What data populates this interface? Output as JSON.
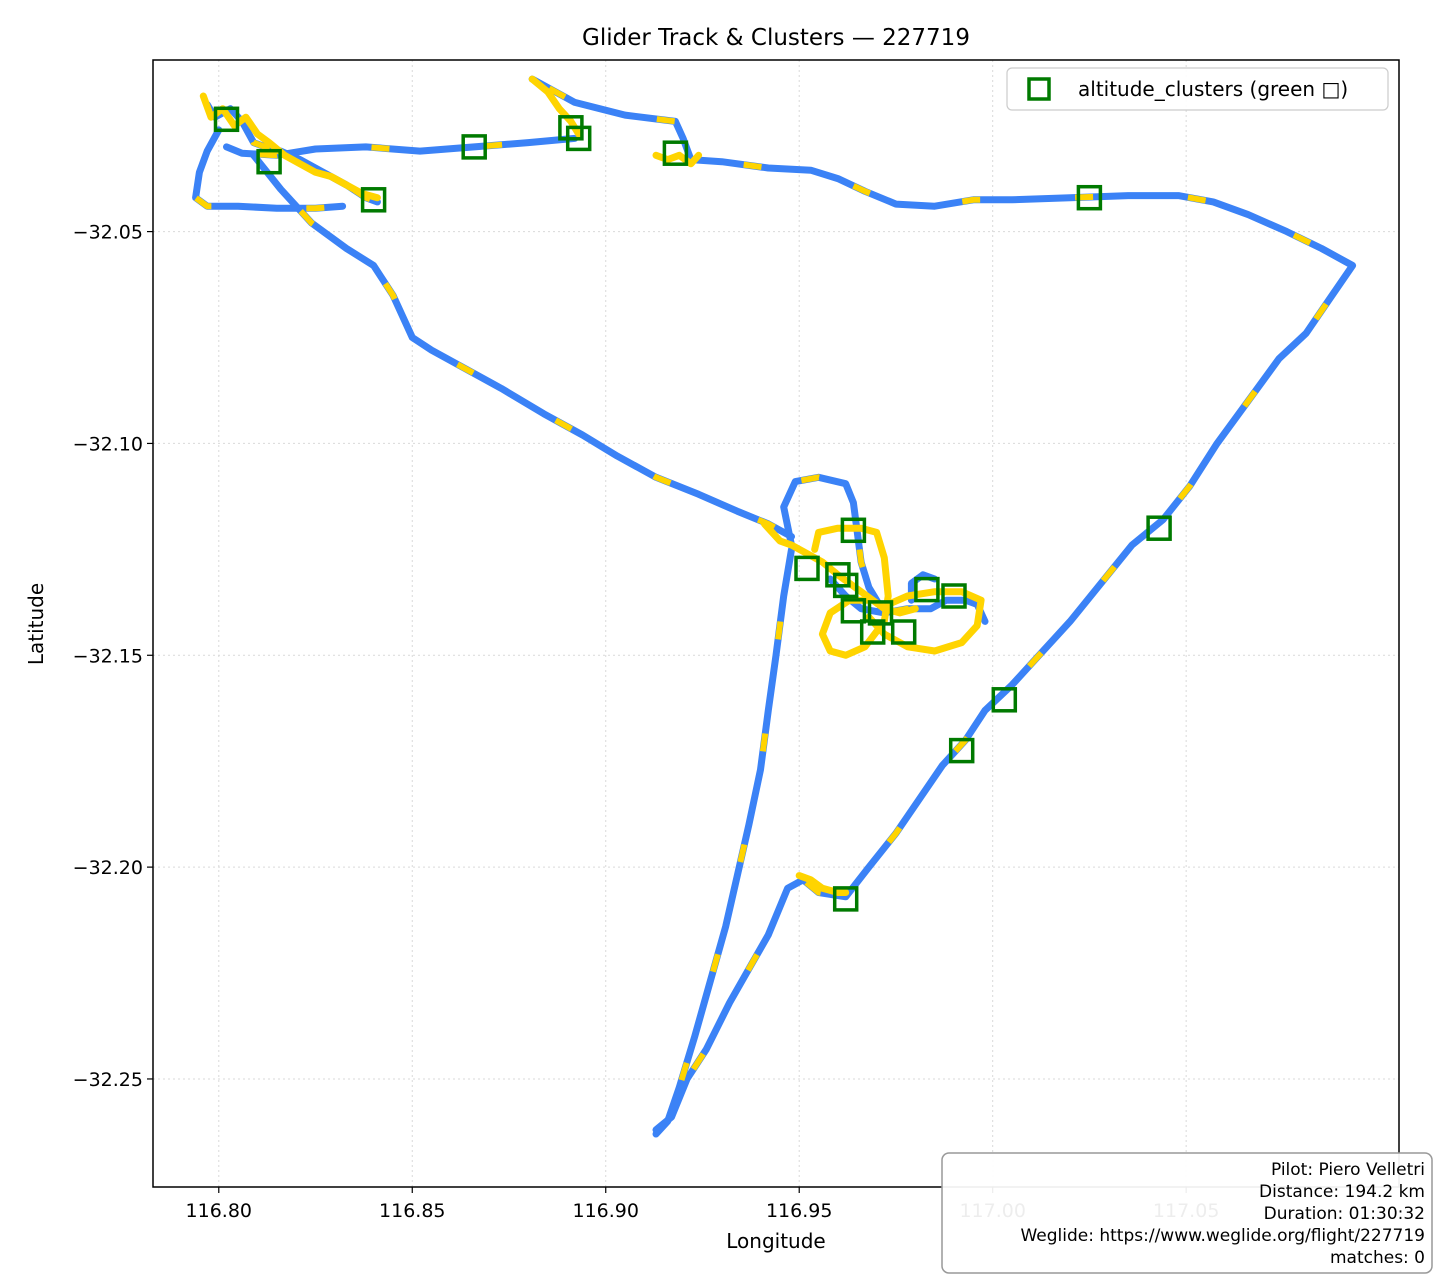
{
  "chart_data": {
    "type": "scatter",
    "title": "Glider Track & Clusters — 227719",
    "xlabel": "Longitude",
    "ylabel": "Latitude",
    "xlim": [
      116.783,
      117.105
    ],
    "ylim": [
      -32.2755,
      -32.0095
    ],
    "x_ticks": [
      116.8,
      116.85,
      116.9,
      116.95,
      117.0,
      117.05
    ],
    "x_tick_labels": [
      "116.80",
      "116.85",
      "116.90",
      "116.95",
      "117.00",
      "117.05"
    ],
    "y_ticks": [
      -32.05,
      -32.1,
      -32.15,
      -32.2,
      -32.25
    ],
    "y_tick_labels": [
      "−32.05",
      "−32.10",
      "−32.15",
      "−32.20",
      "−32.25"
    ],
    "grid": true,
    "legend_position": "top-right",
    "colors": {
      "track": "#3b82f6",
      "climb": "#ffd400",
      "cluster": "#007a00",
      "grid": "#d9d9d9"
    },
    "track_segments": [
      {
        "name": "eastern-leg",
        "points": [
          [
            116.913,
            -32.262
          ],
          [
            116.917,
            -32.259
          ],
          [
            116.921,
            -32.25
          ],
          [
            116.926,
            -32.243
          ],
          [
            116.932,
            -32.232
          ],
          [
            116.937,
            -32.224
          ],
          [
            116.942,
            -32.216
          ],
          [
            116.947,
            -32.205
          ],
          [
            116.951,
            -32.203
          ],
          [
            116.955,
            -32.206
          ],
          [
            116.962,
            -32.207
          ],
          [
            116.968,
            -32.2
          ],
          [
            116.975,
            -32.192
          ],
          [
            116.981,
            -32.184
          ],
          [
            116.987,
            -32.176
          ],
          [
            116.993,
            -32.17
          ],
          [
            116.998,
            -32.163
          ],
          [
            117.005,
            -32.157
          ],
          [
            117.012,
            -32.15
          ],
          [
            117.02,
            -32.142
          ],
          [
            117.028,
            -32.133
          ],
          [
            117.036,
            -32.124
          ],
          [
            117.044,
            -32.118
          ],
          [
            117.051,
            -32.11
          ],
          [
            117.058,
            -32.1
          ],
          [
            117.066,
            -32.09
          ],
          [
            117.074,
            -32.08
          ],
          [
            117.081,
            -32.074
          ],
          [
            117.087,
            -32.066
          ],
          [
            117.093,
            -32.058
          ],
          [
            117.085,
            -32.054
          ],
          [
            117.076,
            -32.05
          ],
          [
            117.066,
            -32.046
          ],
          [
            117.057,
            -32.043
          ],
          [
            117.048,
            -32.0415
          ],
          [
            117.035,
            -32.0415
          ],
          [
            117.02,
            -32.042
          ],
          [
            117.005,
            -32.0425
          ],
          [
            116.995,
            -32.0425
          ],
          [
            116.985,
            -32.044
          ],
          [
            116.975,
            -32.0435
          ],
          [
            116.967,
            -32.0405
          ],
          [
            116.96,
            -32.0375
          ],
          [
            116.953,
            -32.0355
          ],
          [
            116.942,
            -32.035
          ],
          [
            116.93,
            -32.0335
          ],
          [
            116.922,
            -32.033
          ],
          [
            116.92,
            -32.028
          ],
          [
            116.918,
            -32.024
          ],
          [
            116.905,
            -32.0225
          ],
          [
            116.892,
            -32.0195
          ],
          [
            116.881,
            -32.014
          ]
        ]
      },
      {
        "name": "middle-leg",
        "points": [
          [
            116.892,
            -32.028
          ],
          [
            116.88,
            -32.029
          ],
          [
            116.866,
            -32.03
          ],
          [
            116.852,
            -32.031
          ],
          [
            116.838,
            -32.03
          ],
          [
            116.825,
            -32.0305
          ],
          [
            116.815,
            -32.032
          ],
          [
            116.806,
            -32.0315
          ],
          [
            116.802,
            -32.03
          ]
        ]
      },
      {
        "name": "western-loop",
        "points": [
          [
            116.8,
            -32.026
          ],
          [
            116.797,
            -32.031
          ],
          [
            116.795,
            -32.036
          ],
          [
            116.794,
            -32.042
          ],
          [
            116.797,
            -32.044
          ],
          [
            116.805,
            -32.044
          ],
          [
            116.815,
            -32.0445
          ],
          [
            116.825,
            -32.0445
          ],
          [
            116.832,
            -32.044
          ]
        ]
      },
      {
        "name": "western-thermal-drift",
        "points": [
          [
            116.797,
            -32.02
          ],
          [
            116.799,
            -32.023
          ],
          [
            116.803,
            -32.021
          ],
          [
            116.806,
            -32.024
          ],
          [
            116.809,
            -32.029
          ],
          [
            116.812,
            -32.03
          ],
          [
            116.816,
            -32.031
          ],
          [
            116.821,
            -32.033
          ],
          [
            116.827,
            -32.036
          ],
          [
            116.833,
            -32.039
          ],
          [
            116.838,
            -32.042
          ],
          [
            116.841,
            -32.043
          ]
        ]
      },
      {
        "name": "southwest-leg",
        "points": [
          [
            116.809,
            -32.032
          ],
          [
            116.816,
            -32.04
          ],
          [
            116.824,
            -32.048
          ],
          [
            116.833,
            -32.054
          ],
          [
            116.84,
            -32.058
          ],
          [
            116.845,
            -32.065
          ],
          [
            116.85,
            -32.075
          ],
          [
            116.855,
            -32.078
          ],
          [
            116.863,
            -32.082
          ],
          [
            116.873,
            -32.087
          ],
          [
            116.884,
            -32.093
          ],
          [
            116.894,
            -32.098
          ],
          [
            116.903,
            -32.103
          ],
          [
            116.913,
            -32.108
          ],
          [
            116.924,
            -32.112
          ],
          [
            116.934,
            -32.116
          ],
          [
            116.942,
            -32.119
          ],
          [
            116.948,
            -32.122
          ]
        ]
      },
      {
        "name": "southern-leg",
        "points": [
          [
            116.948,
            -32.125
          ],
          [
            116.946,
            -32.136
          ],
          [
            116.944,
            -32.15
          ],
          [
            116.942,
            -32.163
          ],
          [
            116.94,
            -32.177
          ],
          [
            116.937,
            -32.19
          ],
          [
            116.934,
            -32.202
          ],
          [
            116.931,
            -32.214
          ],
          [
            116.927,
            -32.227
          ],
          [
            116.923,
            -32.24
          ],
          [
            116.919,
            -32.252
          ],
          [
            116.916,
            -32.26
          ],
          [
            116.913,
            -32.263
          ]
        ]
      },
      {
        "name": "central-loop-north",
        "points": [
          [
            116.948,
            -32.124
          ],
          [
            116.946,
            -32.115
          ],
          [
            116.949,
            -32.109
          ],
          [
            116.955,
            -32.108
          ],
          [
            116.962,
            -32.1095
          ],
          [
            116.964,
            -32.114
          ],
          [
            116.965,
            -32.121
          ],
          [
            116.966,
            -32.128
          ],
          [
            116.968,
            -32.134
          ],
          [
            116.972,
            -32.14
          ]
        ]
      },
      {
        "name": "central-loop-south",
        "points": [
          [
            116.958,
            -32.132
          ],
          [
            116.962,
            -32.136
          ],
          [
            116.966,
            -32.139
          ],
          [
            116.972,
            -32.14
          ],
          [
            116.978,
            -32.139
          ],
          [
            116.984,
            -32.139
          ],
          [
            116.988,
            -32.137
          ],
          [
            116.993,
            -32.137
          ],
          [
            116.996,
            -32.138
          ],
          [
            116.998,
            -32.142
          ]
        ]
      },
      {
        "name": "central-hook",
        "points": [
          [
            116.979,
            -32.137
          ],
          [
            116.979,
            -32.133
          ],
          [
            116.982,
            -32.131
          ],
          [
            116.985,
            -32.132
          ]
        ]
      }
    ],
    "climb_segments": [
      {
        "name": "western-cluster-climb",
        "points": [
          [
            116.796,
            -32.018
          ],
          [
            116.798,
            -32.023
          ],
          [
            116.801,
            -32.021
          ],
          [
            116.804,
            -32.025
          ],
          [
            116.807,
            -32.023
          ],
          [
            116.81,
            -32.027
          ],
          [
            116.813,
            -32.029
          ],
          [
            116.817,
            -32.032
          ],
          [
            116.821,
            -32.034
          ],
          [
            116.825,
            -32.036
          ],
          [
            116.829,
            -32.037
          ],
          [
            116.833,
            -32.039
          ],
          [
            116.837,
            -32.041
          ],
          [
            116.841,
            -32.042
          ]
        ]
      },
      {
        "name": "northern-climb",
        "points": [
          [
            116.881,
            -32.014
          ],
          [
            116.885,
            -32.017
          ],
          [
            116.888,
            -32.021
          ],
          [
            116.891,
            -32.024
          ],
          [
            116.893,
            -32.027
          ]
        ]
      },
      {
        "name": "turnpoint-climb",
        "points": [
          [
            116.913,
            -32.032
          ],
          [
            116.916,
            -32.033
          ],
          [
            116.919,
            -32.032
          ],
          [
            116.922,
            -32.034
          ],
          [
            116.924,
            -32.032
          ]
        ]
      },
      {
        "name": "central-climb-a",
        "points": [
          [
            116.941,
            -32.119
          ],
          [
            116.945,
            -32.123
          ],
          [
            116.948,
            -32.124
          ],
          [
            116.952,
            -32.126
          ],
          [
            116.956,
            -32.128
          ],
          [
            116.96,
            -32.131
          ],
          [
            116.963,
            -32.133
          ],
          [
            116.966,
            -32.135
          ],
          [
            116.969,
            -32.137
          ],
          [
            116.972,
            -32.139
          ],
          [
            116.976,
            -32.14
          ],
          [
            116.98,
            -32.139
          ]
        ]
      },
      {
        "name": "central-climb-b",
        "points": [
          [
            116.954,
            -32.125
          ],
          [
            116.955,
            -32.121
          ],
          [
            116.96,
            -32.12
          ],
          [
            116.966,
            -32.12
          ],
          [
            116.97,
            -32.121
          ],
          [
            116.972,
            -32.127
          ],
          [
            116.973,
            -32.136
          ],
          [
            116.972,
            -32.142
          ],
          [
            116.967,
            -32.148
          ],
          [
            116.962,
            -32.15
          ],
          [
            116.958,
            -32.149
          ],
          [
            116.956,
            -32.145
          ],
          [
            116.958,
            -32.14
          ],
          [
            116.963,
            -32.137
          ],
          [
            116.968,
            -32.137
          ]
        ]
      },
      {
        "name": "central-climb-c",
        "points": [
          [
            116.973,
            -32.138
          ],
          [
            116.978,
            -32.136
          ],
          [
            116.985,
            -32.135
          ],
          [
            116.992,
            -32.135
          ],
          [
            116.997,
            -32.137
          ],
          [
            116.996,
            -32.143
          ],
          [
            116.992,
            -32.147
          ],
          [
            116.985,
            -32.149
          ],
          [
            116.978,
            -32.148
          ],
          [
            116.972,
            -32.145
          ],
          [
            116.968,
            -32.141
          ]
        ]
      },
      {
        "name": "southern-climb",
        "points": [
          [
            116.95,
            -32.202
          ],
          [
            116.953,
            -32.203
          ],
          [
            116.956,
            -32.205
          ],
          [
            116.96,
            -32.206
          ],
          [
            116.962,
            -32.206
          ]
        ]
      }
    ],
    "altitude_clusters": {
      "label": "altitude_clusters (green □)",
      "points": [
        [
          116.802,
          -32.0235
        ],
        [
          116.813,
          -32.0335
        ],
        [
          116.84,
          -32.0425
        ],
        [
          116.866,
          -32.03
        ],
        [
          116.891,
          -32.0255
        ],
        [
          116.893,
          -32.028
        ],
        [
          116.918,
          -32.0315
        ],
        [
          117.025,
          -32.042
        ],
        [
          116.964,
          -32.1205
        ],
        [
          116.952,
          -32.1295
        ],
        [
          116.96,
          -32.131
        ],
        [
          116.962,
          -32.1335
        ],
        [
          116.964,
          -32.1395
        ],
        [
          116.971,
          -32.14
        ],
        [
          116.969,
          -32.1445
        ],
        [
          116.977,
          -32.1445
        ],
        [
          116.983,
          -32.1345
        ],
        [
          116.99,
          -32.136
        ],
        [
          116.962,
          -32.2075
        ],
        [
          116.992,
          -32.1725
        ],
        [
          117.003,
          -32.1605
        ],
        [
          117.043,
          -32.12
        ]
      ]
    },
    "annotation": {
      "pilot": "Pilot: Piero Velletri",
      "distance": "Distance: 194.2 km",
      "duration": "Duration: 01:30:32",
      "weglide": "Weglide: https://www.weglide.org/flight/227719",
      "matches": "matches: 0"
    }
  }
}
